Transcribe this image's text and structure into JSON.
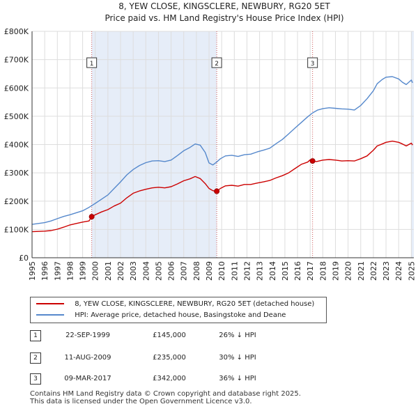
{
  "title_line1": "8, YEW CLOSE, KINGSCLERE, NEWBURY, RG20 5ET",
  "title_line2": "Price paid vs. HM Land Registry's House Price Index (HPI)",
  "colors": {
    "property": "#cc0000",
    "hpi": "#5588cc",
    "shade": "#e6edf8",
    "grid": "#dddddd",
    "marker_line": "#cc5555"
  },
  "legend": {
    "property_label": "8, YEW CLOSE, KINGSCLERE, NEWBURY, RG20 5ET (detached house)",
    "hpi_label": "HPI: Average price, detached house, Basingstoke and Deane"
  },
  "sales": [
    {
      "num": "1",
      "date": "22-SEP-1999",
      "price": "£145,000",
      "hpi_diff": "26% ↓ HPI"
    },
    {
      "num": "2",
      "date": "11-AUG-2009",
      "price": "£235,000",
      "hpi_diff": "30% ↓ HPI"
    },
    {
      "num": "3",
      "date": "09-MAR-2017",
      "price": "£342,000",
      "hpi_diff": "36% ↓ HPI"
    }
  ],
  "footer": {
    "line1": "Contains HM Land Registry data © Crown copyright and database right 2025.",
    "line2": "This data is licensed under the Open Government Licence v3.0."
  },
  "chart_data": {
    "type": "line",
    "title": "8, YEW CLOSE, KINGSCLERE, NEWBURY, RG20 5ET",
    "subtitle": "Price paid vs. HM Land Registry's House Price Index (HPI)",
    "xlabel": "",
    "ylabel": "",
    "xlim": [
      1995,
      2025.2
    ],
    "ylim": [
      0,
      800000
    ],
    "grid": true,
    "legend_position": "below",
    "x_ticks": [
      "1995",
      "1996",
      "1997",
      "1998",
      "1999",
      "2000",
      "2001",
      "2002",
      "2003",
      "2004",
      "2005",
      "2006",
      "2007",
      "2008",
      "2009",
      "2010",
      "2011",
      "2012",
      "2013",
      "2014",
      "2015",
      "2016",
      "2017",
      "2018",
      "2019",
      "2020",
      "2021",
      "2022",
      "2023",
      "2024",
      "2025"
    ],
    "y_ticks": [
      {
        "value": 0,
        "label": "£0"
      },
      {
        "value": 100000,
        "label": "£100K"
      },
      {
        "value": 200000,
        "label": "£200K"
      },
      {
        "value": 300000,
        "label": "£300K"
      },
      {
        "value": 400000,
        "label": "£400K"
      },
      {
        "value": 500000,
        "label": "£500K"
      },
      {
        "value": 600000,
        "label": "£600K"
      },
      {
        "value": 700000,
        "label": "£700K"
      },
      {
        "value": 800000,
        "label": "£800K"
      }
    ],
    "series": [
      {
        "name": "8, YEW CLOSE, KINGSCLERE, NEWBURY, RG20 5ET (detached house)",
        "color": "#cc0000",
        "x": [
          1995,
          1995.5,
          1996,
          1996.5,
          1997,
          1997.5,
          1998,
          1998.5,
          1999,
          1999.5,
          1999.72,
          2000,
          2000.5,
          2001,
          2001.5,
          2002,
          2002.5,
          2003,
          2003.5,
          2004,
          2004.5,
          2005,
          2005.5,
          2006,
          2006.5,
          2007,
          2007.5,
          2007.9,
          2008.3,
          2008.7,
          2009,
          2009.3,
          2009.61,
          2009.9,
          2010.3,
          2010.8,
          2011.3,
          2011.8,
          2012.3,
          2012.8,
          2013.3,
          2013.8,
          2014.3,
          2014.8,
          2015.3,
          2015.8,
          2016.3,
          2016.8,
          2017.0,
          2017.19,
          2017.5,
          2018,
          2018.5,
          2019,
          2019.5,
          2020,
          2020.5,
          2021,
          2021.5,
          2022,
          2022.3,
          2022.7,
          2023,
          2023.5,
          2024,
          2024.3,
          2024.6,
          2025,
          2025.1
        ],
        "y": [
          92000,
          93000,
          94000,
          96000,
          101000,
          108000,
          116000,
          121000,
          126000,
          130000,
          145000,
          152000,
          162000,
          170000,
          183000,
          193000,
          212000,
          228000,
          236000,
          242000,
          247000,
          249000,
          247000,
          251000,
          261000,
          272000,
          279000,
          287000,
          280000,
          262000,
          245000,
          237000,
          235000,
          245000,
          254000,
          256000,
          253000,
          259000,
          259000,
          264000,
          268000,
          273000,
          282000,
          290000,
          300000,
          315000,
          330000,
          338000,
          346000,
          342000,
          340000,
          345000,
          347000,
          345000,
          342000,
          343000,
          342000,
          350000,
          360000,
          380000,
          395000,
          402000,
          408000,
          412000,
          408000,
          402000,
          395000,
          405000,
          398000
        ]
      },
      {
        "name": "HPI: Average price, detached house, Basingstoke and Deane",
        "color": "#5588cc",
        "x": [
          1995,
          1995.5,
          1996,
          1996.5,
          1997,
          1997.5,
          1998,
          1998.5,
          1999,
          1999.5,
          2000,
          2000.5,
          2001,
          2001.5,
          2002,
          2002.5,
          2003,
          2003.5,
          2004,
          2004.5,
          2005,
          2005.5,
          2006,
          2006.5,
          2007,
          2007.5,
          2007.9,
          2008.3,
          2008.7,
          2009,
          2009.3,
          2009.6,
          2009.9,
          2010.3,
          2010.8,
          2011.3,
          2011.8,
          2012.3,
          2012.8,
          2013.3,
          2013.8,
          2014.3,
          2014.8,
          2015.3,
          2015.8,
          2016.3,
          2016.8,
          2017.2,
          2017.6,
          2018,
          2018.5,
          2019,
          2019.5,
          2020,
          2020.5,
          2021,
          2021.5,
          2022,
          2022.3,
          2022.7,
          2023,
          2023.5,
          2024,
          2024.3,
          2024.6,
          2025,
          2025.1
        ],
        "y": [
          118000,
          121000,
          124000,
          130000,
          138000,
          146000,
          152000,
          159000,
          166000,
          178000,
          192000,
          207000,
          222000,
          245000,
          268000,
          293000,
          312000,
          326000,
          336000,
          342000,
          343000,
          340000,
          345000,
          361000,
          378000,
          390000,
          402000,
          398000,
          372000,
          335000,
          328000,
          338000,
          350000,
          360000,
          362000,
          358000,
          364000,
          366000,
          374000,
          380000,
          387000,
          403000,
          418000,
          438000,
          458000,
          478000,
          498000,
          512000,
          522000,
          527000,
          530000,
          528000,
          526000,
          525000,
          522000,
          538000,
          562000,
          590000,
          615000,
          630000,
          638000,
          640000,
          632000,
          620000,
          612000,
          628000,
          618000
        ]
      }
    ],
    "sales_markers": [
      {
        "label": "1",
        "x": 1999.72,
        "y": 145000
      },
      {
        "label": "2",
        "x": 2009.61,
        "y": 235000
      },
      {
        "label": "3",
        "x": 2017.19,
        "y": 342000
      }
    ]
  }
}
